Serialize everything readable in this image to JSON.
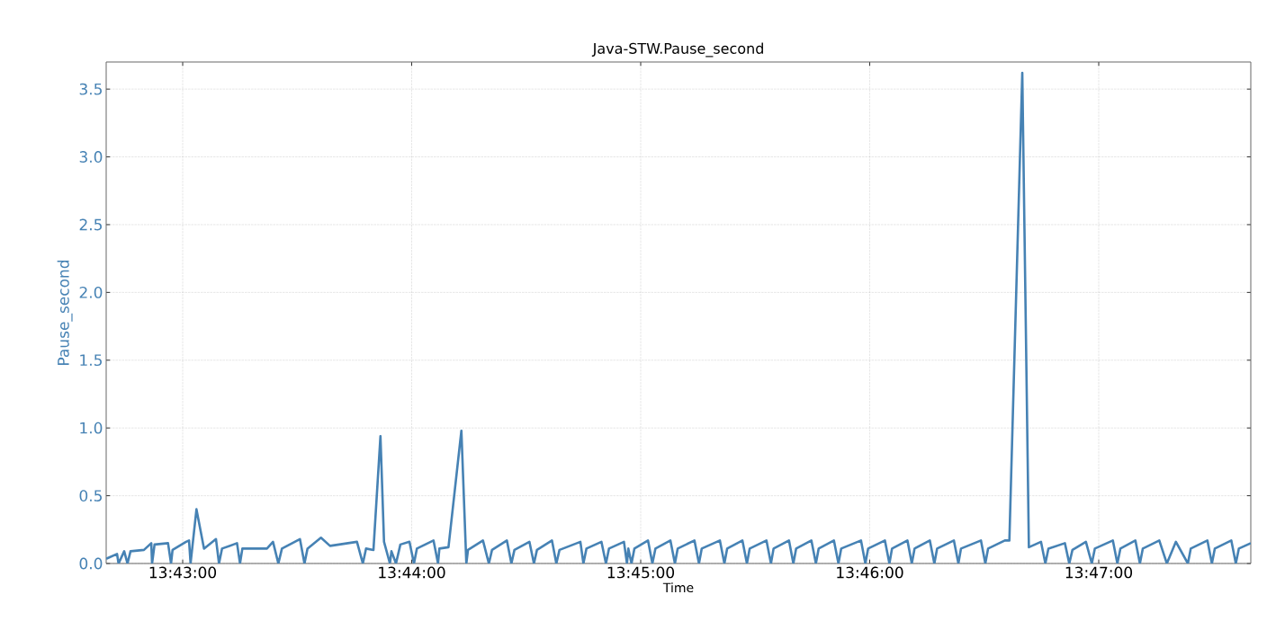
{
  "chart_data": {
    "type": "line",
    "title": "Java-STW.Pause_second",
    "xlabel": "Time",
    "ylabel": "Pause_second",
    "color": "#4682b4",
    "grid": true,
    "xlim": [
      13.7111,
      13.7944
    ],
    "ylim": [
      0,
      3.7
    ],
    "xticks": [
      {
        "value": 13.716667,
        "label": "13:43:00"
      },
      {
        "value": 13.733333,
        "label": "13:44:00"
      },
      {
        "value": 13.75,
        "label": "13:45:00"
      },
      {
        "value": 13.766667,
        "label": "13:46:00"
      },
      {
        "value": 13.783333,
        "label": "13:47:00"
      }
    ],
    "yticks": [
      {
        "value": 0,
        "label": "0.0"
      },
      {
        "value": 0.5,
        "label": "0.5"
      },
      {
        "value": 1,
        "label": "1.0"
      },
      {
        "value": 1.5,
        "label": "1.5"
      },
      {
        "value": 2,
        "label": "2.0"
      },
      {
        "value": 2.5,
        "label": "2.5"
      },
      {
        "value": 3,
        "label": "3.0"
      },
      {
        "value": 3.5,
        "label": "3.5"
      }
    ],
    "x": [
      13.7111,
      13.71189,
      13.712,
      13.71241,
      13.71265,
      13.71287,
      13.71385,
      13.71438,
      13.71444,
      13.71462,
      13.7156,
      13.71582,
      13.71593,
      13.71691,
      13.71713,
      13.71724,
      13.71767,
      13.71822,
      13.71909,
      13.71931,
      13.71953,
      13.72062,
      13.72084,
      13.72101,
      13.7228,
      13.72324,
      13.72363,
      13.72389,
      13.7252,
      13.72553,
      13.72575,
      13.72673,
      13.72739,
      13.72935,
      13.72978,
      13.73001,
      13.73055,
      13.73106,
      13.73132,
      13.73175,
      13.73186,
      13.73219,
      13.73251,
      13.73317,
      13.7335,
      13.73371,
      13.73492,
      13.73525,
      13.73535,
      13.73601,
      13.73695,
      13.73731,
      13.73743,
      13.73852,
      13.73895,
      13.73918,
      13.74026,
      13.74059,
      13.74081,
      13.7419,
      13.74223,
      13.74245,
      13.74354,
      13.74386,
      13.74409,
      13.74561,
      13.74583,
      13.74605,
      13.74714,
      13.74747,
      13.74769,
      13.74878,
      13.749,
      13.7491,
      13.74933,
      13.74954,
      13.75053,
      13.75085,
      13.75107,
      13.75216,
      13.75249,
      13.75269,
      13.75391,
      13.75424,
      13.75444,
      13.75576,
      13.75609,
      13.75629,
      13.7574,
      13.75773,
      13.75793,
      13.75915,
      13.75948,
      13.75967,
      13.76079,
      13.76111,
      13.76131,
      13.76242,
      13.76275,
      13.76295,
      13.76406,
      13.76439,
      13.76459,
      13.76603,
      13.76635,
      13.76655,
      13.76777,
      13.7681,
      13.76829,
      13.76941,
      13.76973,
      13.76993,
      13.77104,
      13.77137,
      13.77157,
      13.77279,
      13.77312,
      13.77331,
      13.77476,
      13.77508,
      13.77528,
      13.7765,
      13.77683,
      13.77777,
      13.77825,
      13.77913,
      13.77945,
      13.77967,
      13.78087,
      13.78119,
      13.78142,
      13.7824,
      13.78283,
      13.78305,
      13.78436,
      13.78469,
      13.78491,
      13.786,
      13.78633,
      13.78654,
      13.78774,
      13.78829,
      13.78895,
      13.78982,
      13.79003,
      13.79124,
      13.79157,
      13.79178,
      13.79298,
      13.79331,
      13.79353,
      13.7944
    ],
    "values": [
      0.035,
      0.07,
      0,
      0.09,
      0,
      0.09,
      0.1,
      0.15,
      0,
      0.14,
      0.15,
      0,
      0.1,
      0.16,
      0.17,
      0,
      0.4,
      0.11,
      0.18,
      0,
      0.11,
      0.15,
      0,
      0.11,
      0.11,
      0.16,
      0,
      0.11,
      0.18,
      0,
      0.11,
      0.19,
      0.13,
      0.16,
      0,
      0.11,
      0.1,
      0.94,
      0.16,
      0,
      0.09,
      0,
      0.14,
      0.16,
      0,
      0.11,
      0.17,
      0,
      0.11,
      0.12,
      0.98,
      0,
      0.1,
      0.17,
      0,
      0.1,
      0.17,
      0,
      0.1,
      0.16,
      0,
      0.1,
      0.17,
      0,
      0.1,
      0.16,
      0,
      0.11,
      0.16,
      0,
      0.11,
      0.16,
      0,
      0.11,
      0,
      0.11,
      0.17,
      0,
      0.11,
      0.17,
      0,
      0.11,
      0.17,
      0,
      0.11,
      0.17,
      0,
      0.11,
      0.17,
      0,
      0.11,
      0.17,
      0,
      0.11,
      0.17,
      0,
      0.11,
      0.17,
      0,
      0.11,
      0.17,
      0,
      0.11,
      0.17,
      0,
      0.11,
      0.17,
      0,
      0.11,
      0.17,
      0,
      0.11,
      0.17,
      0,
      0.11,
      0.17,
      0,
      0.11,
      0.17,
      0,
      0.11,
      0.17,
      0.17,
      3.62,
      0.12,
      0.16,
      0,
      0.11,
      0.15,
      0,
      0.1,
      0.16,
      0,
      0.11,
      0.17,
      0,
      0.11,
      0.17,
      0,
      0.11,
      0.17,
      0,
      0.16,
      0,
      0.11,
      0.17,
      0,
      0.11,
      0.17,
      0,
      0.11,
      0.15
    ]
  }
}
